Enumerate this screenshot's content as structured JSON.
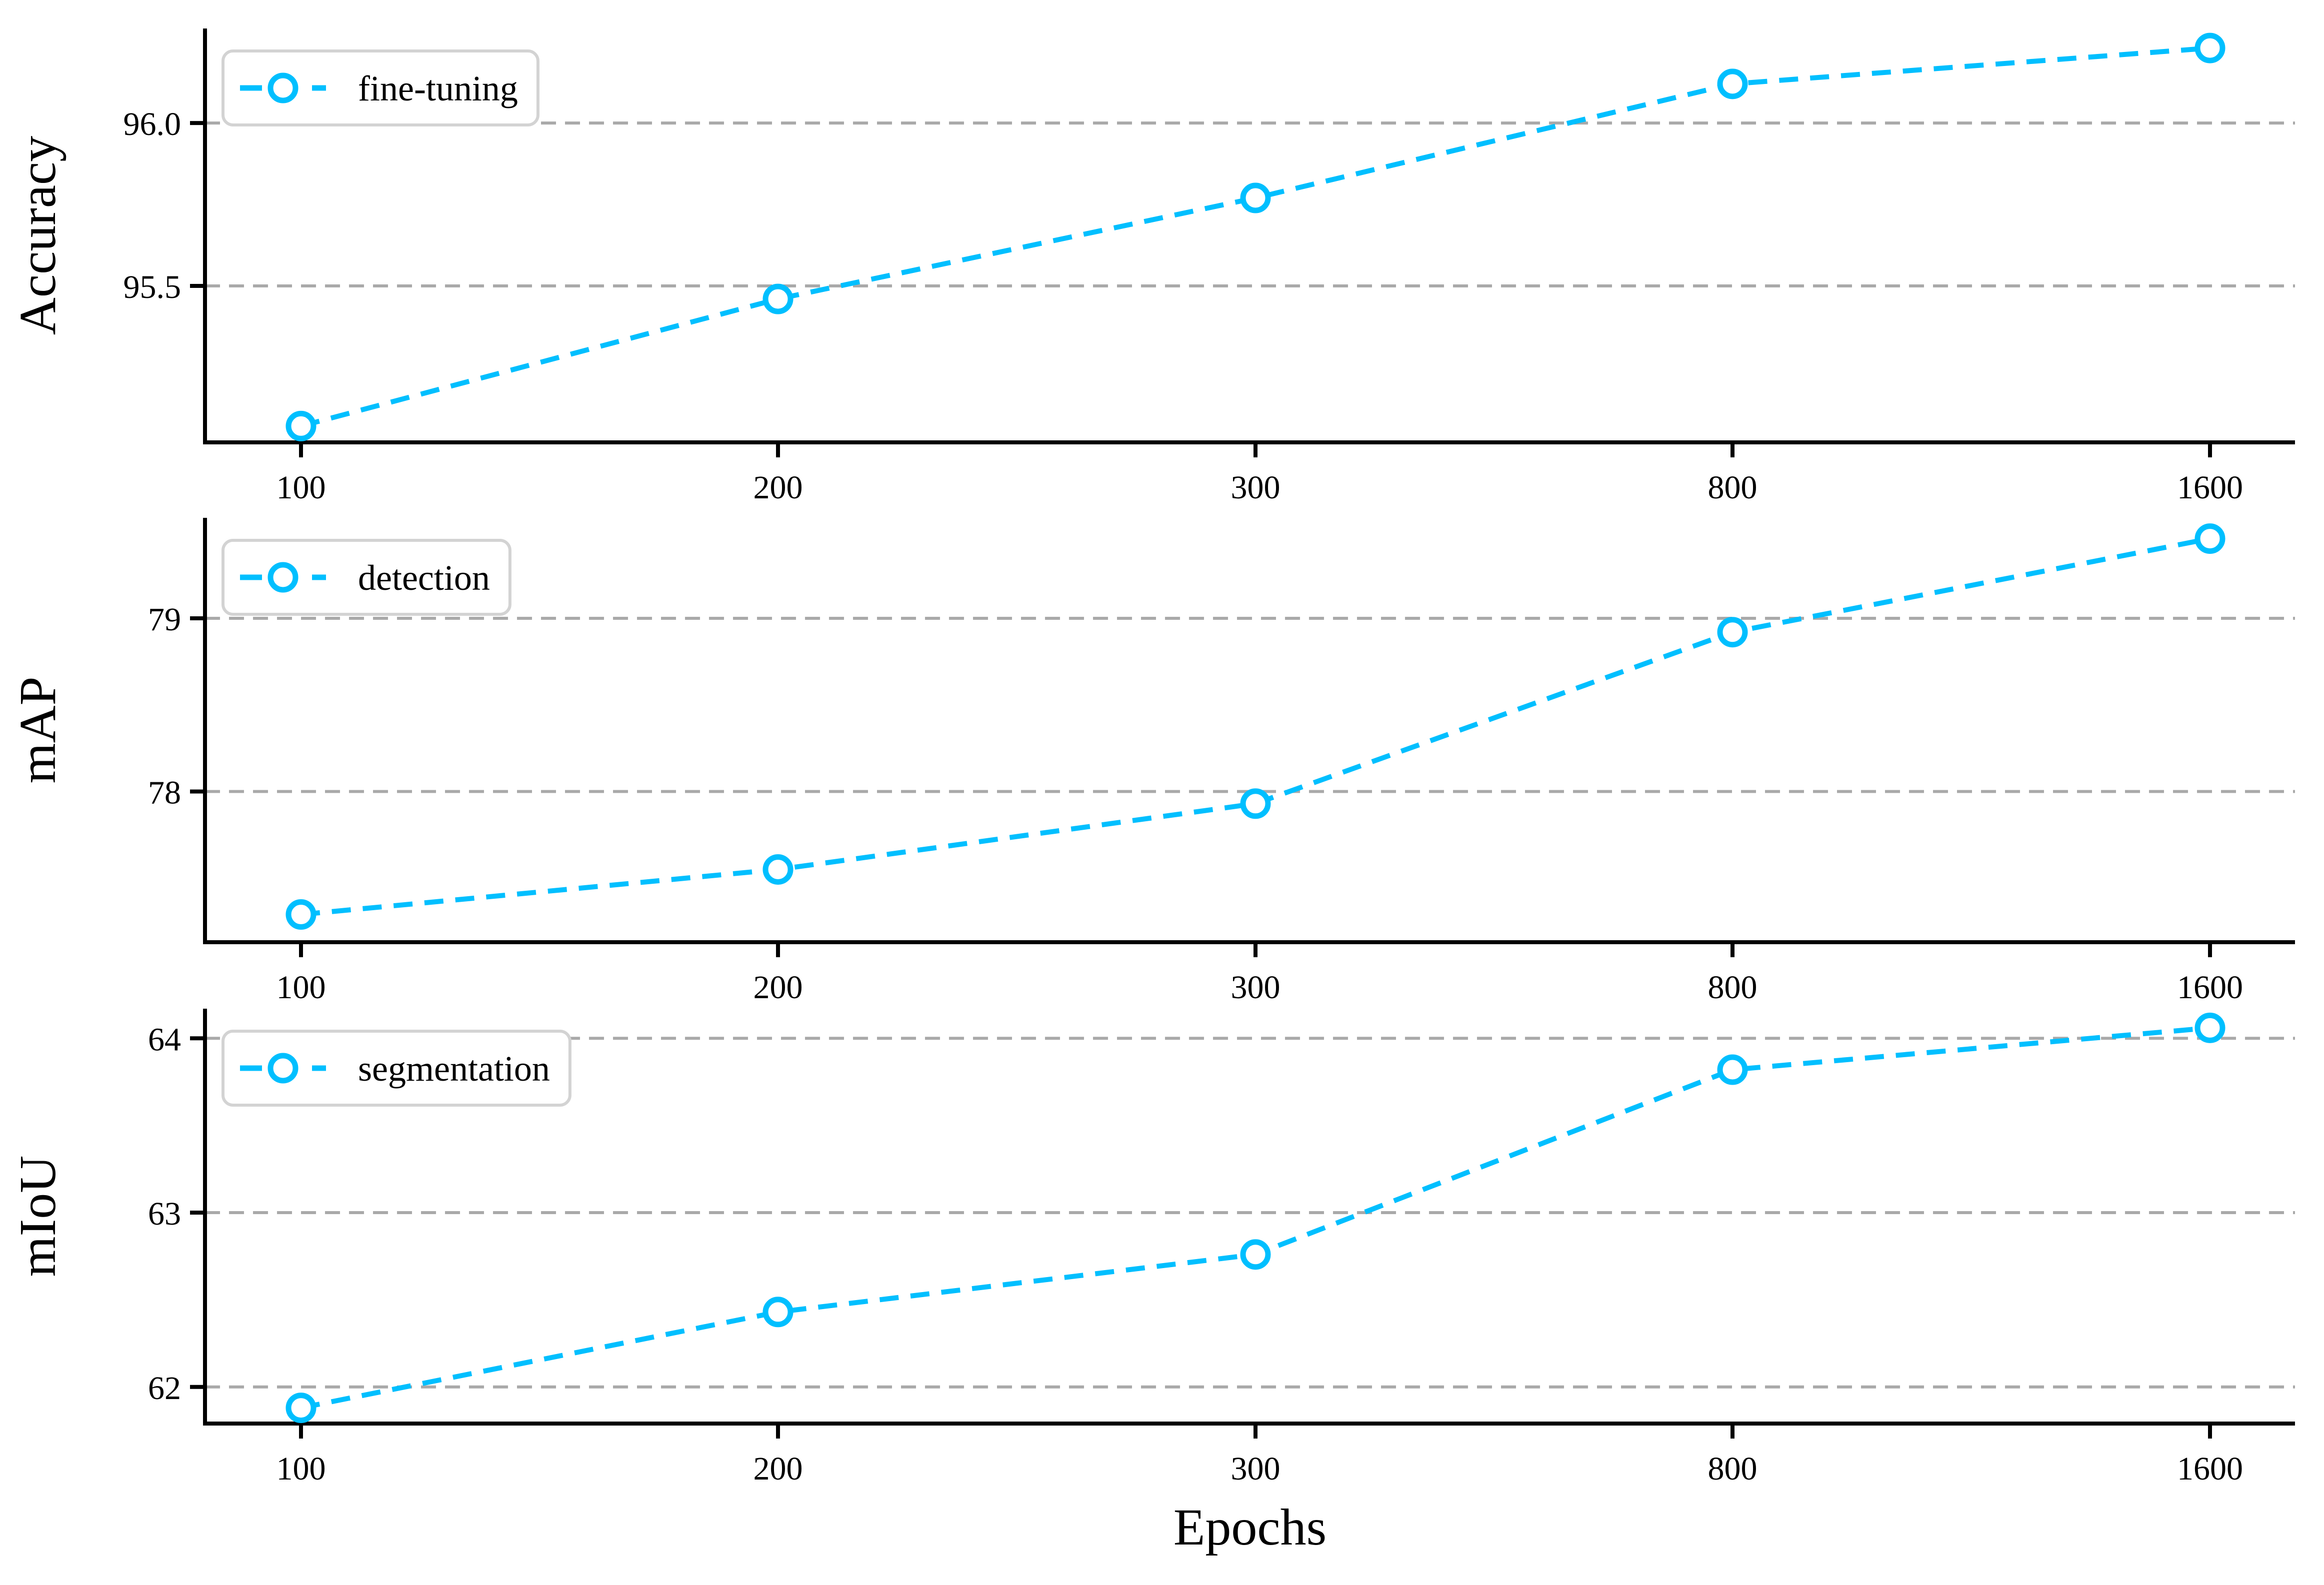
{
  "figure": {
    "xlabel": "Epochs",
    "background": "#ffffff",
    "colors": {
      "line": "#00BFFF",
      "marker_fill": "#ffffff",
      "grid": "#A9A9A9",
      "spine": "#000000",
      "text": "#000000",
      "legend_border": "#D3D3D3",
      "legend_fill": "#ffffff"
    }
  },
  "chart_data": [
    {
      "type": "line",
      "ylabel": "Accuracy",
      "legend": "fine-tuning",
      "legend_position": "upper left",
      "line_style": "dashed",
      "marker": "open-circle",
      "grid": "horizontal-dashed",
      "x_categories": [
        "100",
        "200",
        "300",
        "800",
        "1600"
      ],
      "x": [
        100,
        200,
        300,
        800,
        1600
      ],
      "values": [
        95.07,
        95.46,
        95.77,
        96.12,
        96.23
      ],
      "yticks": [
        95.5,
        96.0
      ],
      "ytick_labels": [
        "95.5",
        "96.0"
      ],
      "ylim": [
        95.02,
        96.29
      ]
    },
    {
      "type": "line",
      "ylabel": "mAP",
      "legend": "detection",
      "legend_position": "upper left",
      "line_style": "dashed",
      "marker": "open-circle",
      "grid": "horizontal-dashed",
      "x_categories": [
        "100",
        "200",
        "300",
        "800",
        "1600"
      ],
      "x": [
        100,
        200,
        300,
        800,
        1600
      ],
      "values": [
        77.29,
        77.55,
        77.93,
        78.92,
        79.46
      ],
      "yticks": [
        78,
        79
      ],
      "ytick_labels": [
        "78",
        "79"
      ],
      "ylim": [
        77.13,
        79.58
      ]
    },
    {
      "type": "line",
      "ylabel": "mIoU",
      "legend": "segmentation",
      "legend_position": "upper left",
      "line_style": "dashed",
      "marker": "open-circle",
      "grid": "horizontal-dashed",
      "x_categories": [
        "100",
        "200",
        "300",
        "800",
        "1600"
      ],
      "x": [
        100,
        200,
        300,
        800,
        1600
      ],
      "values": [
        61.88,
        62.43,
        62.76,
        63.82,
        64.06
      ],
      "yticks": [
        62,
        63,
        64
      ],
      "ytick_labels": [
        "62",
        "63",
        "64"
      ],
      "ylim": [
        61.79,
        64.17
      ]
    }
  ]
}
